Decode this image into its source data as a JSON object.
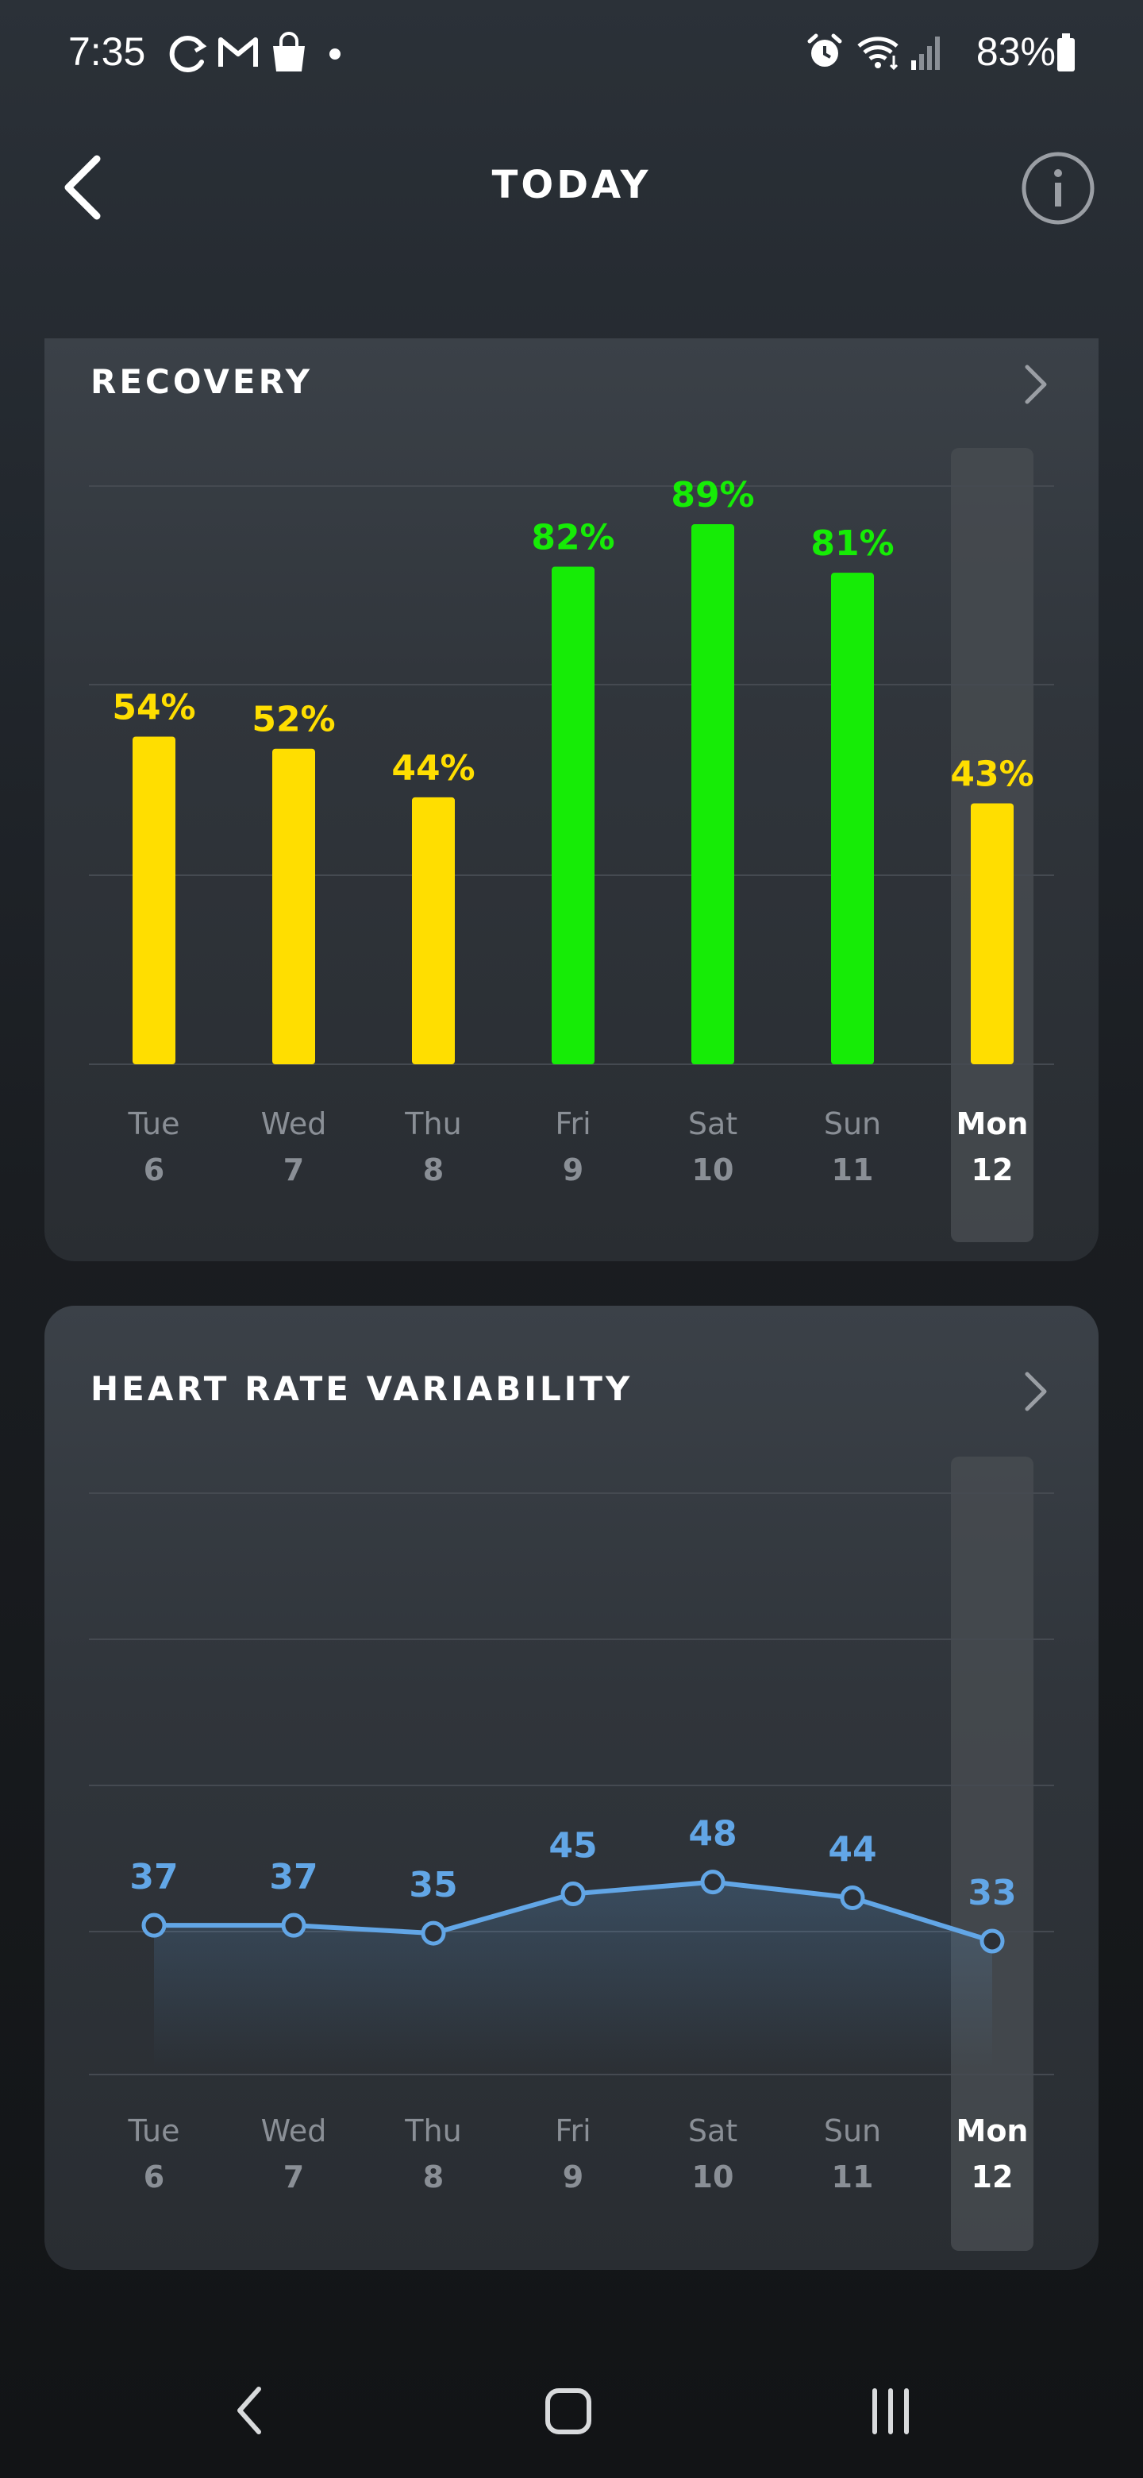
{
  "status_bar": {
    "time": "7:35",
    "battery": "83%",
    "left_icons": [
      "sync-icon",
      "gmail-icon",
      "shopping-bag-icon",
      "dot-icon"
    ],
    "right_icons": [
      "alarm-icon",
      "wifi-icon",
      "signal-icon",
      "battery-icon"
    ]
  },
  "header": {
    "title": "TODAY",
    "back_icon": "chevron-left-icon",
    "info_icon": "info-icon"
  },
  "recovery": {
    "title": "RECOVERY",
    "chart_data": {
      "type": "bar",
      "categories": [
        "Tue",
        "Wed",
        "Thu",
        "Fri",
        "Sat",
        "Sun",
        "Mon"
      ],
      "dates": [
        "6",
        "7",
        "8",
        "9",
        "10",
        "11",
        "12"
      ],
      "values": [
        54,
        52,
        44,
        82,
        89,
        81,
        43
      ],
      "labels": [
        "54%",
        "52%",
        "44%",
        "82%",
        "89%",
        "81%",
        "43%"
      ],
      "colors": [
        "#ffde00",
        "#ffde00",
        "#ffde00",
        "#16ec06",
        "#16ec06",
        "#16ec06",
        "#ffde00"
      ],
      "ylim": [
        0,
        100
      ],
      "grid": true,
      "highlighted_index": 6
    }
  },
  "hrv": {
    "title": "HEART RATE VARIABILITY",
    "chart_data": {
      "type": "line",
      "categories": [
        "Tue",
        "Wed",
        "Thu",
        "Fri",
        "Sat",
        "Sun",
        "Mon"
      ],
      "dates": [
        "6",
        "7",
        "8",
        "9",
        "10",
        "11",
        "12"
      ],
      "values": [
        37,
        37,
        35,
        45,
        48,
        44,
        33
      ],
      "line_color": "#62a6e6",
      "ylim": [
        20,
        54
      ],
      "grid": true,
      "highlighted_index": 6
    }
  },
  "nav_bar": {
    "icons": [
      "back-nav-icon",
      "home-nav-icon",
      "recents-nav-icon"
    ]
  },
  "colors": {
    "label_muted": "#8a8f96",
    "label_active": "#ffffff",
    "highlight_column": "#474b50",
    "gridline": "#454a51"
  }
}
